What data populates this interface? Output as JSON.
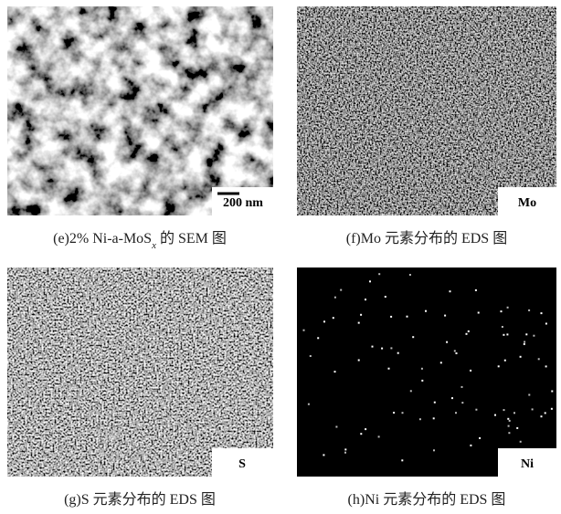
{
  "panels": [
    {
      "label": "200 nm",
      "caption": {
        "text": "(e)2% Ni-a-MoS",
        "subscript": "x",
        "suffix": " 的 SEM 图"
      }
    },
    {
      "label": "Mo",
      "caption": {
        "text": "(f)Mo 元素分布的 EDS 图"
      }
    },
    {
      "label": "S",
      "caption": {
        "text": "(g)S 元素分布的 EDS 图"
      }
    },
    {
      "label": "Ni",
      "caption": {
        "text": "(h)Ni 元素分布的 EDS 图"
      }
    }
  ]
}
